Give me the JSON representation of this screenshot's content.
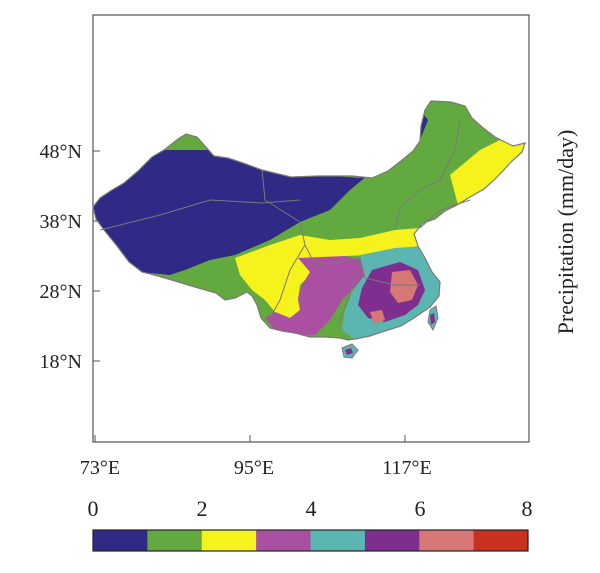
{
  "map": {
    "x_ticks": [
      "73°E",
      "95°E",
      "117°E"
    ],
    "y_ticks": [
      "48°N",
      "38°N",
      "28°N",
      "18°N"
    ],
    "side_label": "Precipitation (mm/day)"
  },
  "colorbar": {
    "labels": [
      "0",
      "2",
      "4",
      "6",
      "8"
    ],
    "colors": [
      "#2e2a86",
      "#62aa3f",
      "#f6f21c",
      "#ab4fa3",
      "#5bb6b1",
      "#7d2e8e",
      "#d77776",
      "#c9301e"
    ]
  },
  "palette": {
    "ocean": "#ffffff",
    "border": "#7a7a7a",
    "frame": "#555555"
  }
}
